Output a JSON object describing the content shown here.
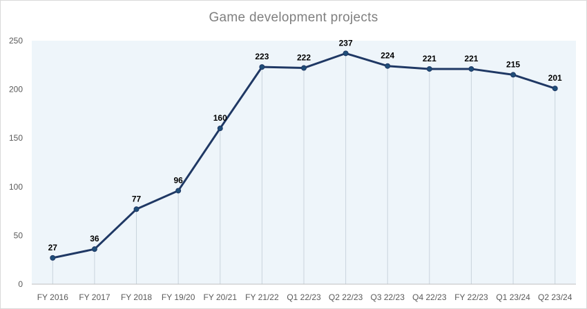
{
  "chart_data": {
    "type": "line",
    "title": "Game development projects",
    "xlabel": "",
    "ylabel": "",
    "categories": [
      "FY 2016",
      "FY 2017",
      "FY 2018",
      "FY 19/20",
      "FY 20/21",
      "FY 21/22",
      "Q1 22/23",
      "Q2 22/23",
      "Q3 22/23",
      "Q4 22/23",
      "FY 22/23",
      "Q1 23/24",
      "Q2 23/24"
    ],
    "series": [
      {
        "values": [
          27,
          36,
          77,
          96,
          160,
          223,
          222,
          237,
          224,
          221,
          221,
          215,
          201
        ]
      }
    ],
    "ylim": [
      0,
      250
    ],
    "yticks": [
      0,
      50,
      100,
      150,
      200,
      250
    ],
    "grid": "vertical drop lines",
    "legend": "none",
    "colors": {
      "line": "#1f3864",
      "marker": "#1f4e79",
      "plot_bg": "#eef5fa",
      "title": "#7f7f7f"
    }
  }
}
